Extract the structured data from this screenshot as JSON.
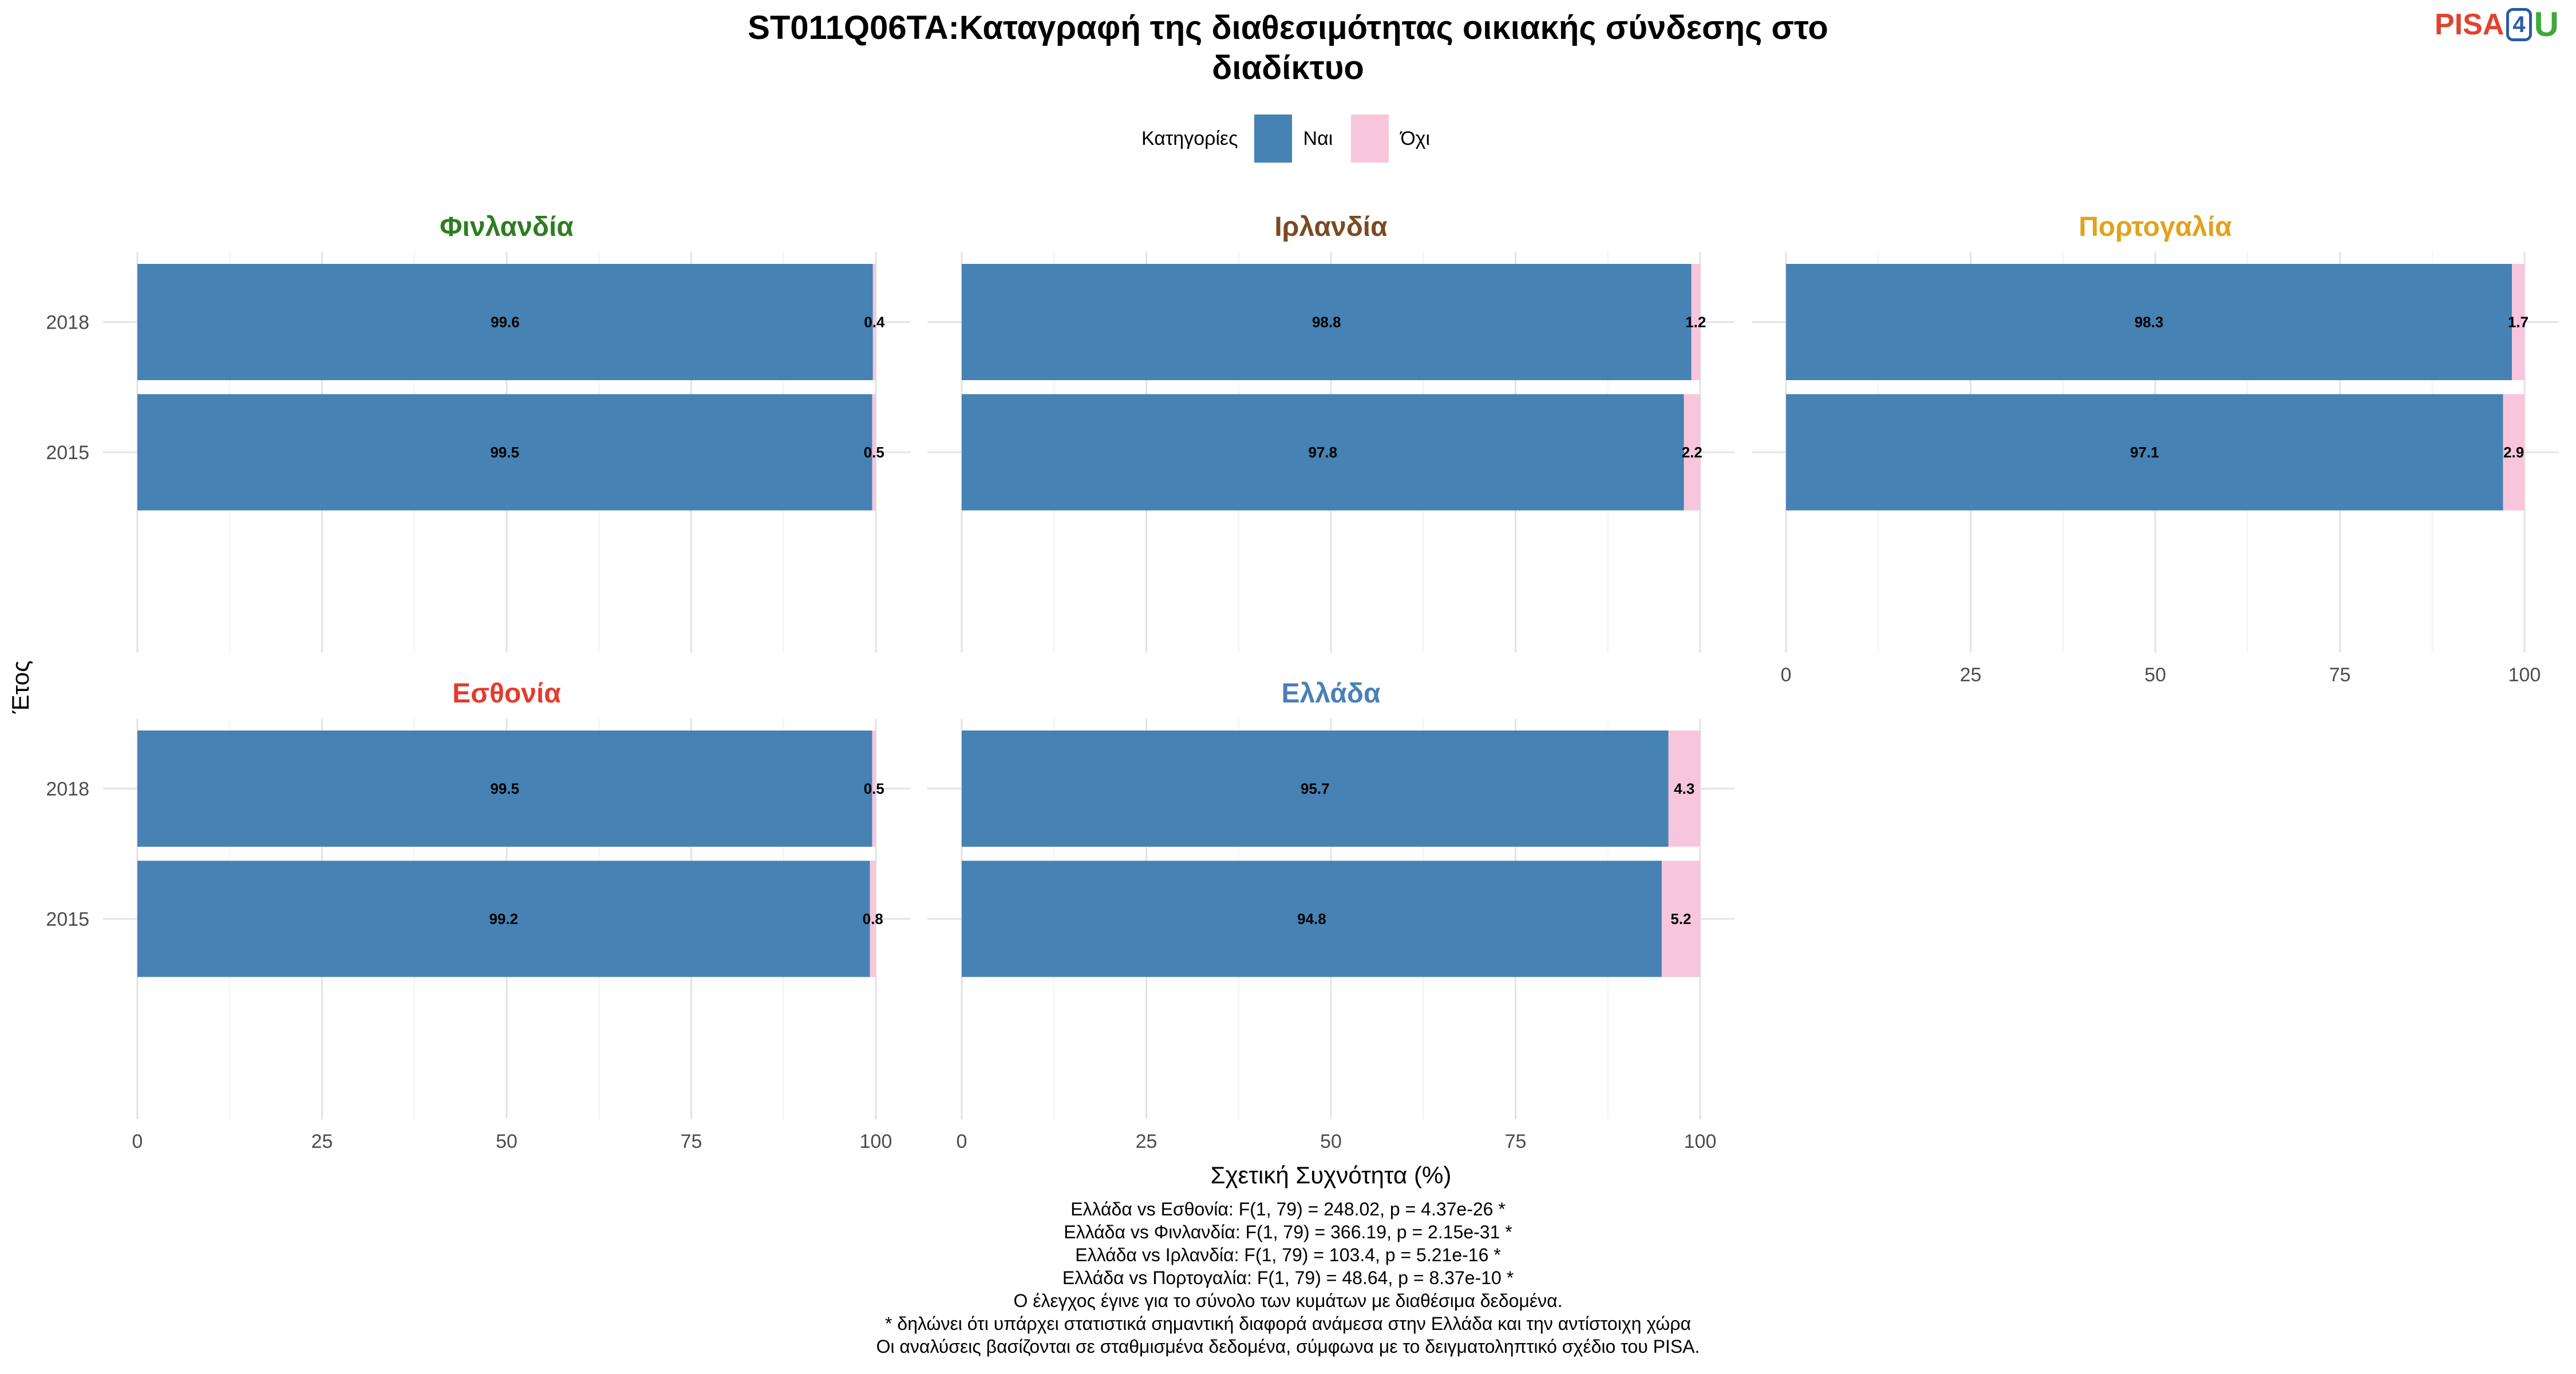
{
  "chart_data": {
    "type": "bar",
    "orientation": "horizontal",
    "stacked": true,
    "title": "ST011Q06TA:Καταγραφή της διαθεσιμότητας οικιακής σύνδεσης στο διαδίκτυο",
    "title_lines": [
      "ST011Q06TA:Καταγραφή της διαθεσιμότητας οικιακής σύνδεσης στο",
      "διαδίκτυο"
    ],
    "xlabel": "Σχετική Συχνότητα (%)",
    "ylabel": "Έτος",
    "xlim": [
      0,
      100
    ],
    "xticks": [
      "0",
      "25",
      "50",
      "75",
      "100"
    ],
    "categories": [
      "2018",
      "2015"
    ],
    "grid": true,
    "legend": {
      "title": "Κατηγορίες",
      "position": "top",
      "entries": [
        {
          "name": "Ναι",
          "color": "#4682b4"
        },
        {
          "name": "Όχι",
          "color": "#f7c6dc"
        }
      ]
    },
    "panels": [
      {
        "name": "Φινλανδία",
        "color": "#2e7d1f",
        "series": [
          {
            "name": "Ναι",
            "values": [
              99.6,
              99.5
            ]
          },
          {
            "name": "Όχι",
            "values": [
              0.4,
              0.5
            ]
          }
        ]
      },
      {
        "name": "Ιρλανδία",
        "color": "#7a4a22",
        "series": [
          {
            "name": "Ναι",
            "values": [
              98.8,
              97.8
            ]
          },
          {
            "name": "Όχι",
            "values": [
              1.2,
              2.2
            ]
          }
        ]
      },
      {
        "name": "Πορτογαλία",
        "color": "#e3a21a",
        "series": [
          {
            "name": "Ναι",
            "values": [
              98.3,
              97.1
            ]
          },
          {
            "name": "Όχι",
            "values": [
              1.7,
              2.9
            ]
          }
        ]
      },
      {
        "name": "Εσθονία",
        "color": "#e63a2e",
        "series": [
          {
            "name": "Ναι",
            "values": [
              99.5,
              99.2
            ]
          },
          {
            "name": "Όχι",
            "values": [
              0.5,
              0.8
            ]
          }
        ]
      },
      {
        "name": "Ελλάδα",
        "color": "#4a7fb8",
        "series": [
          {
            "name": "Ναι",
            "values": [
              95.7,
              94.8
            ]
          },
          {
            "name": "Όχι",
            "values": [
              4.3,
              5.2
            ]
          }
        ]
      }
    ]
  },
  "logo": {
    "left": "PISA",
    "middle": "4",
    "right": "U"
  },
  "notes": [
    "Ελλάδα vs Εσθονία: F(1, 79) = 248.02, p = 4.37e-26 *",
    "Ελλάδα vs Φινλανδία: F(1, 79) = 366.19, p = 2.15e-31 *",
    "Ελλάδα vs Ιρλανδία: F(1, 79) = 103.4, p = 5.21e-16 *",
    "Ελλάδα vs Πορτογαλία: F(1, 79) = 48.64, p = 8.37e-10 *",
    "Ο έλεγχος έγινε για το σύνολο των κυμάτων με διαθέσιμα δεδομένα.",
    "* δηλώνει ότι υπάρχει στατιστικά σημαντική διαφορά ανάμεσα στην Ελλάδα και την αντίστοιχη χώρα",
    "Οι αναλύσεις βασίζονται σε σταθμισμένα δεδομένα, σύμφωνα με το δειγματοληπτικό σχέδιο του PISA."
  ]
}
